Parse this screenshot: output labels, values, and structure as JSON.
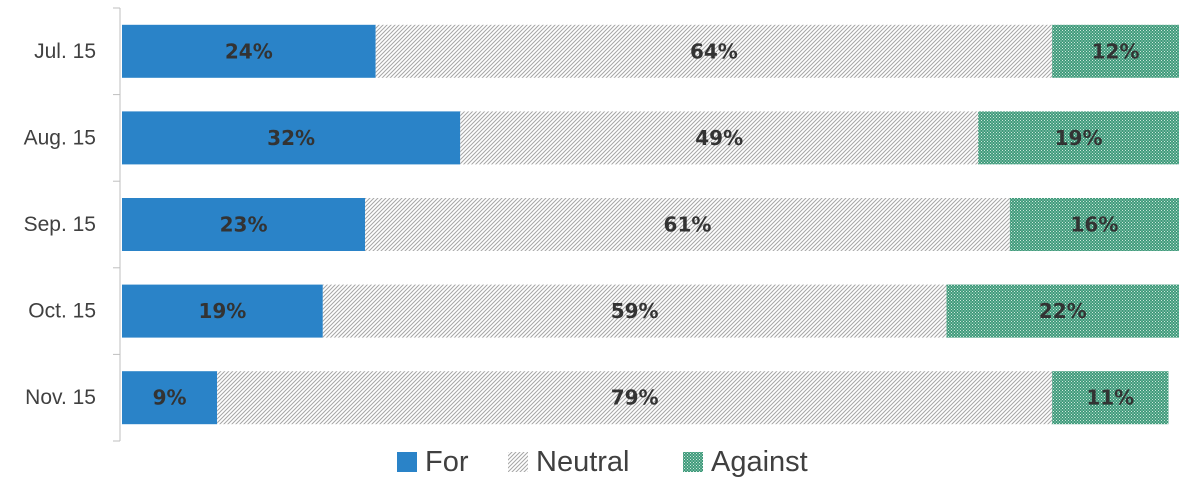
{
  "chart_data": {
    "type": "bar",
    "orientation": "horizontal",
    "stacked": true,
    "percent_stacked": true,
    "categories": [
      "Jul. 15",
      "Aug. 15",
      "Sep. 15",
      "Oct. 15",
      "Nov. 15"
    ],
    "series": [
      {
        "name": "For",
        "values": [
          24,
          32,
          23,
          19,
          9
        ],
        "labels": [
          "24%",
          "32%",
          "23%",
          "19%",
          "9%"
        ],
        "color": "#2a83c8",
        "pattern": "solid"
      },
      {
        "name": "Neutral",
        "values": [
          64,
          49,
          61,
          59,
          79
        ],
        "labels": [
          "64%",
          "49%",
          "61%",
          "59%",
          "79%"
        ],
        "color": "#a6a6a6",
        "pattern": "diagonal-hatch"
      },
      {
        "name": "Against",
        "values": [
          12,
          19,
          16,
          22,
          11
        ],
        "labels": [
          "12%",
          "19%",
          "16%",
          "22%",
          "11%"
        ],
        "color": "#3e9a7a",
        "pattern": "dots"
      }
    ],
    "xlim": [
      0,
      100
    ],
    "legend_position": "bottom",
    "grid": false
  }
}
